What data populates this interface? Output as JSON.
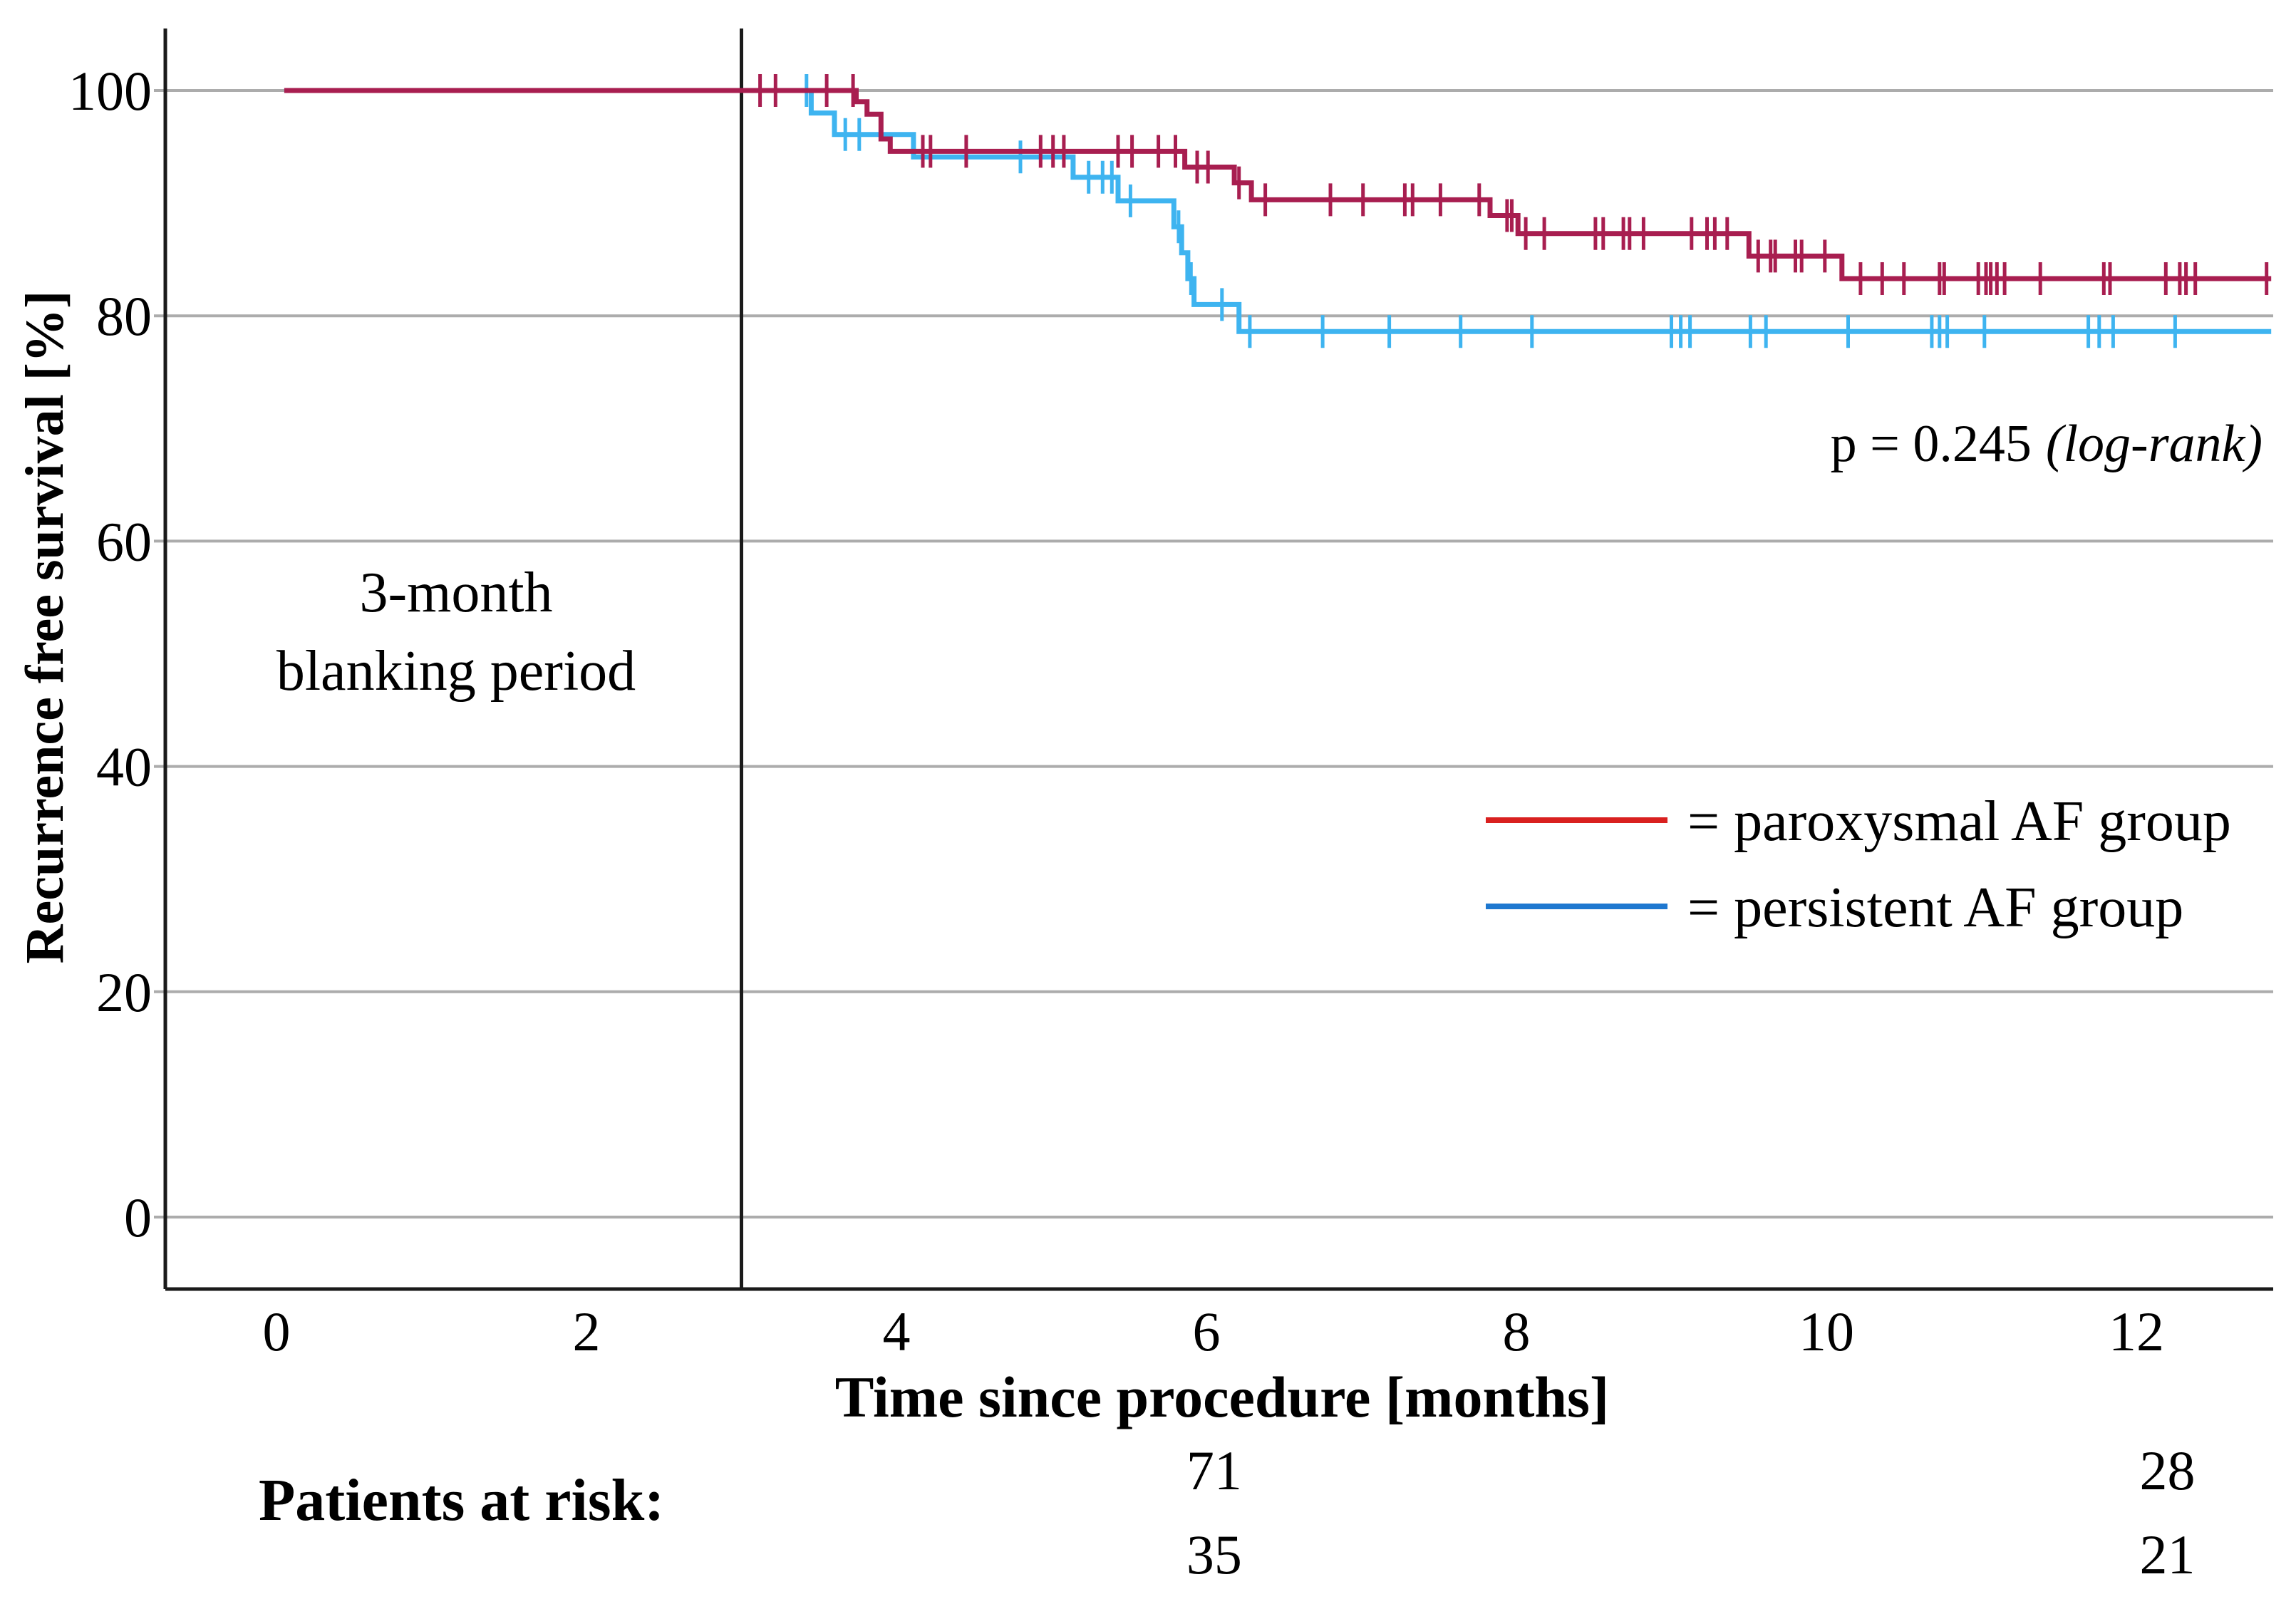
{
  "colors": {
    "paroxysmal_curve": "#A81E50",
    "persistent_curve": "#3EB4F0",
    "legend_red": "#D9201F",
    "legend_blue": "#1E78D0",
    "risk_red": "#C32127",
    "risk_blue": "#44607E",
    "grid": "#ACACAC",
    "axis": "#1A1A1A",
    "text": "#000000",
    "background": "#FFFFFF"
  },
  "annotations": {
    "p_value": "p = 0.245",
    "p_value_method": "(log-rank)",
    "blanking_line1": "3-month",
    "blanking_line2": "blanking period"
  },
  "legend": {
    "position": "right-middle",
    "items": [
      {
        "label": "= paroxysmal AF group",
        "color": "#D9201F"
      },
      {
        "label": "= persistent AF group",
        "color": "#1E78D0"
      }
    ]
  },
  "risk_table": {
    "label": "Patients at risk:",
    "columns": [
      {
        "month": 6.05,
        "values": [
          {
            "text": "71",
            "color": "#C32127"
          },
          {
            "text": "35",
            "color": "#44607E"
          }
        ]
      },
      {
        "month": 12.2,
        "values": [
          {
            "text": "28",
            "color": "#C32127"
          },
          {
            "text": "21",
            "color": "#44607E"
          }
        ]
      }
    ]
  },
  "chart_data": {
    "type": "line",
    "subtype": "kaplan-meier-step",
    "title": "",
    "xlabel": "Time since procedure [months]",
    "ylabel": "Recurrence free survival [%]",
    "x_ticks": [
      0,
      2,
      4,
      6,
      8,
      10,
      12
    ],
    "y_ticks": [
      0,
      20,
      40,
      60,
      80,
      100
    ],
    "xlim": [
      -0.75,
      12.95
    ],
    "ylim": [
      -6,
      106
    ],
    "grid": "horizontal",
    "legend_position": "right-middle",
    "blanking_period_month": 3,
    "series": [
      {
        "name": "persistent AF group",
        "color": "#3EB4F0",
        "steps": [
          [
            0.05,
            100
          ],
          [
            3.45,
            98.0
          ],
          [
            3.6,
            96.1
          ],
          [
            4.11,
            94.1
          ],
          [
            5.14,
            92.3
          ],
          [
            5.43,
            90.2
          ],
          [
            5.79,
            87.9
          ],
          [
            5.84,
            85.6
          ],
          [
            5.88,
            83.3
          ],
          [
            5.92,
            81.0
          ],
          [
            6.21,
            78.6
          ],
          [
            12.87,
            78.6
          ]
        ],
        "censors": [
          [
            3.42,
            100
          ],
          [
            3.67,
            96.1
          ],
          [
            3.76,
            96.1
          ],
          [
            4.8,
            94.1
          ],
          [
            5.24,
            92.3
          ],
          [
            5.33,
            92.3
          ],
          [
            5.39,
            92.3
          ],
          [
            5.51,
            90.2
          ],
          [
            5.82,
            87.9
          ],
          [
            5.9,
            83.3
          ],
          [
            6.1,
            81.0
          ],
          [
            6.28,
            78.6
          ],
          [
            6.75,
            78.6
          ],
          [
            7.18,
            78.6
          ],
          [
            7.64,
            78.6
          ],
          [
            8.1,
            78.6
          ],
          [
            9.0,
            78.6
          ],
          [
            9.06,
            78.6
          ],
          [
            9.12,
            78.6
          ],
          [
            9.51,
            78.6
          ],
          [
            9.61,
            78.6
          ],
          [
            10.14,
            78.6
          ],
          [
            10.68,
            78.6
          ],
          [
            10.73,
            78.6
          ],
          [
            10.78,
            78.6
          ],
          [
            11.02,
            78.6
          ],
          [
            11.69,
            78.6
          ],
          [
            11.76,
            78.6
          ],
          [
            11.85,
            78.6
          ],
          [
            12.25,
            78.6
          ]
        ]
      },
      {
        "name": "paroxysmal AF group",
        "color": "#A81E50",
        "steps": [
          [
            0.05,
            100
          ],
          [
            3.74,
            99.0
          ],
          [
            3.81,
            97.9
          ],
          [
            3.9,
            95.7
          ],
          [
            3.96,
            94.6
          ],
          [
            5.86,
            93.2
          ],
          [
            6.18,
            91.8
          ],
          [
            6.29,
            90.3
          ],
          [
            7.83,
            88.9
          ],
          [
            8.01,
            87.3
          ],
          [
            9.5,
            85.3
          ],
          [
            10.1,
            83.3
          ],
          [
            12.87,
            83.3
          ]
        ],
        "censors": [
          [
            3.12,
            100
          ],
          [
            3.22,
            100
          ],
          [
            3.55,
            100
          ],
          [
            3.72,
            100
          ],
          [
            4.17,
            94.6
          ],
          [
            4.22,
            94.6
          ],
          [
            4.45,
            94.6
          ],
          [
            4.93,
            94.6
          ],
          [
            5.01,
            94.6
          ],
          [
            5.08,
            94.6
          ],
          [
            5.43,
            94.6
          ],
          [
            5.52,
            94.6
          ],
          [
            5.69,
            94.6
          ],
          [
            5.8,
            94.6
          ],
          [
            5.94,
            93.2
          ],
          [
            6.01,
            93.2
          ],
          [
            6.21,
            91.8
          ],
          [
            6.38,
            90.3
          ],
          [
            6.8,
            90.3
          ],
          [
            7.01,
            90.3
          ],
          [
            7.28,
            90.3
          ],
          [
            7.33,
            90.3
          ],
          [
            7.51,
            90.3
          ],
          [
            7.76,
            90.3
          ],
          [
            7.94,
            88.9
          ],
          [
            7.97,
            88.9
          ],
          [
            8.06,
            87.3
          ],
          [
            8.18,
            87.3
          ],
          [
            8.51,
            87.3
          ],
          [
            8.56,
            87.3
          ],
          [
            8.69,
            87.3
          ],
          [
            8.73,
            87.3
          ],
          [
            8.82,
            87.3
          ],
          [
            9.13,
            87.3
          ],
          [
            9.23,
            87.3
          ],
          [
            9.28,
            87.3
          ],
          [
            9.36,
            87.3
          ],
          [
            9.56,
            85.3
          ],
          [
            9.64,
            85.3
          ],
          [
            9.67,
            85.3
          ],
          [
            9.8,
            85.3
          ],
          [
            9.84,
            85.3
          ],
          [
            9.99,
            85.3
          ],
          [
            10.22,
            83.3
          ],
          [
            10.36,
            83.3
          ],
          [
            10.5,
            83.3
          ],
          [
            10.73,
            83.3
          ],
          [
            10.76,
            83.3
          ],
          [
            10.98,
            83.3
          ],
          [
            11.03,
            83.3
          ],
          [
            11.06,
            83.3
          ],
          [
            11.1,
            83.3
          ],
          [
            11.15,
            83.3
          ],
          [
            11.38,
            83.3
          ],
          [
            11.79,
            83.3
          ],
          [
            11.83,
            83.3
          ],
          [
            12.19,
            83.3
          ],
          [
            12.28,
            83.3
          ],
          [
            12.32,
            83.3
          ],
          [
            12.38,
            83.3
          ],
          [
            12.84,
            83.3
          ]
        ]
      }
    ]
  }
}
